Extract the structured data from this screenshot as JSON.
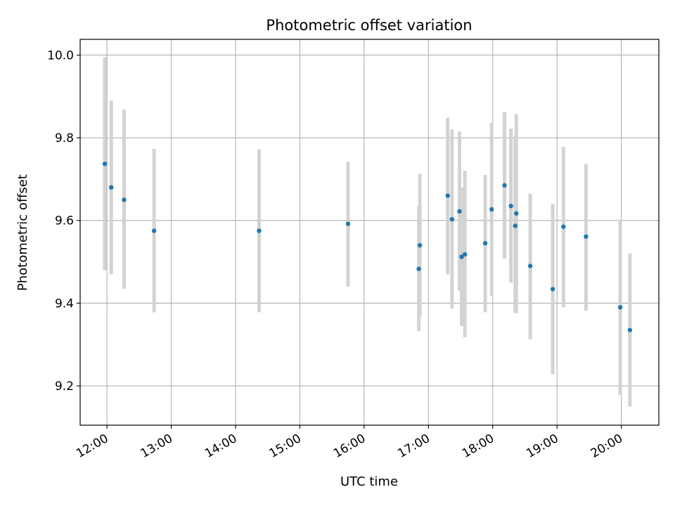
{
  "chart_data": {
    "type": "scatter",
    "title": "Photometric offset variation",
    "xlabel": "UTC time",
    "ylabel": "Photometric offset",
    "xlim": [
      "11:35",
      "20:35"
    ],
    "ylim": [
      9.105,
      10.038
    ],
    "grid": true,
    "x_ticks": [
      "12:00",
      "13:00",
      "14:00",
      "15:00",
      "16:00",
      "17:00",
      "18:00",
      "19:00",
      "20:00"
    ],
    "y_ticks": [
      9.2,
      9.4,
      9.6,
      9.8,
      10.0
    ],
    "y_tick_labels": [
      "9.2",
      "9.4",
      "9.6",
      "9.8",
      "10.0"
    ],
    "colors": {
      "point": "#1f77b4",
      "errorbar": "#d3d3d3",
      "grid": "#b0b0b0"
    },
    "series": [
      {
        "points": [
          {
            "x": "11:58",
            "y": 9.737,
            "ylo": 9.48,
            "yhi": 9.995
          },
          {
            "x": "12:04",
            "y": 9.68,
            "ylo": 9.47,
            "yhi": 9.89
          },
          {
            "x": "12:16",
            "y": 9.65,
            "ylo": 9.435,
            "yhi": 9.868
          },
          {
            "x": "12:44",
            "y": 9.575,
            "ylo": 9.378,
            "yhi": 9.773
          },
          {
            "x": "14:22",
            "y": 9.575,
            "ylo": 9.378,
            "yhi": 9.772
          },
          {
            "x": "15:45",
            "y": 9.592,
            "ylo": 9.44,
            "yhi": 9.742
          },
          {
            "x": "16:51",
            "y": 9.483,
            "ylo": 9.332,
            "yhi": 9.635
          },
          {
            "x": "16:52",
            "y": 9.54,
            "ylo": 9.368,
            "yhi": 9.713
          },
          {
            "x": "17:18",
            "y": 9.66,
            "ylo": 9.47,
            "yhi": 9.848
          },
          {
            "x": "17:22",
            "y": 9.603,
            "ylo": 9.387,
            "yhi": 9.82
          },
          {
            "x": "17:29",
            "y": 9.622,
            "ylo": 9.43,
            "yhi": 9.815
          },
          {
            "x": "17:31",
            "y": 9.512,
            "ylo": 9.345,
            "yhi": 9.68
          },
          {
            "x": "17:34",
            "y": 9.518,
            "ylo": 9.318,
            "yhi": 9.72
          },
          {
            "x": "17:53",
            "y": 9.545,
            "ylo": 9.378,
            "yhi": 9.71
          },
          {
            "x": "17:59",
            "y": 9.627,
            "ylo": 9.418,
            "yhi": 9.836
          },
          {
            "x": "18:11",
            "y": 9.685,
            "ylo": 9.508,
            "yhi": 9.863
          },
          {
            "x": "18:17",
            "y": 9.635,
            "ylo": 9.45,
            "yhi": 9.822
          },
          {
            "x": "18:21",
            "y": 9.587,
            "ylo": 9.376,
            "yhi": 9.805
          },
          {
            "x": "18:22",
            "y": 9.617,
            "ylo": 9.376,
            "yhi": 9.857
          },
          {
            "x": "18:35",
            "y": 9.49,
            "ylo": 9.313,
            "yhi": 9.665
          },
          {
            "x": "18:56",
            "y": 9.434,
            "ylo": 9.228,
            "yhi": 9.64
          },
          {
            "x": "19:06",
            "y": 9.585,
            "ylo": 9.39,
            "yhi": 9.778
          },
          {
            "x": "19:27",
            "y": 9.561,
            "ylo": 9.382,
            "yhi": 9.737
          },
          {
            "x": "19:59",
            "y": 9.39,
            "ylo": 9.178,
            "yhi": 9.602
          },
          {
            "x": "20:08",
            "y": 9.335,
            "ylo": 9.15,
            "yhi": 9.52
          }
        ]
      }
    ]
  }
}
